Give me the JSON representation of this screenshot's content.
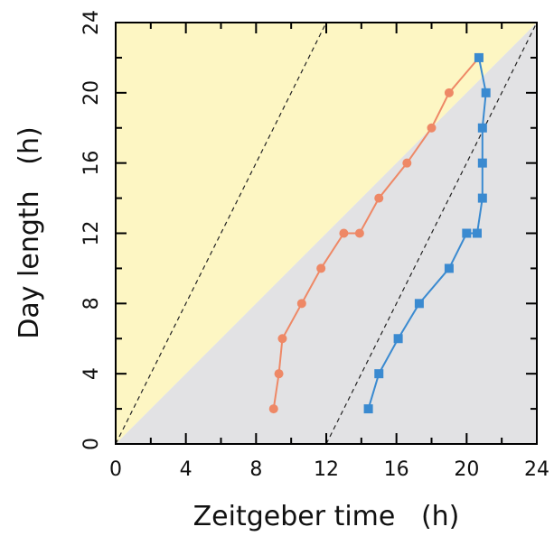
{
  "chart_data": {
    "type": "line",
    "xlabel": "Zeitgeber time   (h)",
    "ylabel": "Day length   (h)",
    "xlim": [
      0,
      24
    ],
    "ylim": [
      0,
      24
    ],
    "xticks": [
      "0",
      "4",
      "8",
      "12",
      "16",
      "20",
      "24"
    ],
    "yticks": [
      "0",
      "4",
      "8",
      "12",
      "16",
      "20",
      "24"
    ],
    "regions": [
      {
        "name": "light",
        "color": "#fdf6c3",
        "polygon": [
          [
            0,
            0
          ],
          [
            24,
            24
          ],
          [
            0,
            24
          ]
        ]
      },
      {
        "name": "dark",
        "color": "#e2e2e4",
        "polygon": [
          [
            0,
            0
          ],
          [
            24,
            0
          ],
          [
            24,
            24
          ]
        ]
      }
    ],
    "reference_lines": [
      {
        "x": [
          0,
          12
        ],
        "y": [
          0,
          24
        ],
        "style": "dashed"
      },
      {
        "x": [
          12,
          24
        ],
        "y": [
          0,
          24
        ],
        "style": "dashed"
      }
    ],
    "series": [
      {
        "marker": "circle",
        "color": "#ee8866",
        "x": [
          9.0,
          9.3,
          9.5,
          10.6,
          11.7,
          13.0,
          13.9,
          15.0,
          16.6,
          18.0,
          19.0,
          20.7
        ],
        "y": [
          2,
          4,
          6,
          8,
          10,
          12,
          12,
          14,
          16,
          18,
          20,
          22
        ]
      },
      {
        "marker": "square",
        "color": "#3a8ad0",
        "x": [
          14.4,
          15.0,
          16.1,
          17.3,
          19.0,
          20.0,
          20.6,
          20.9,
          20.9,
          20.9,
          21.1,
          20.7
        ],
        "y": [
          2,
          4,
          6,
          8,
          10,
          12,
          12,
          14,
          16,
          18,
          20,
          22
        ]
      }
    ]
  }
}
